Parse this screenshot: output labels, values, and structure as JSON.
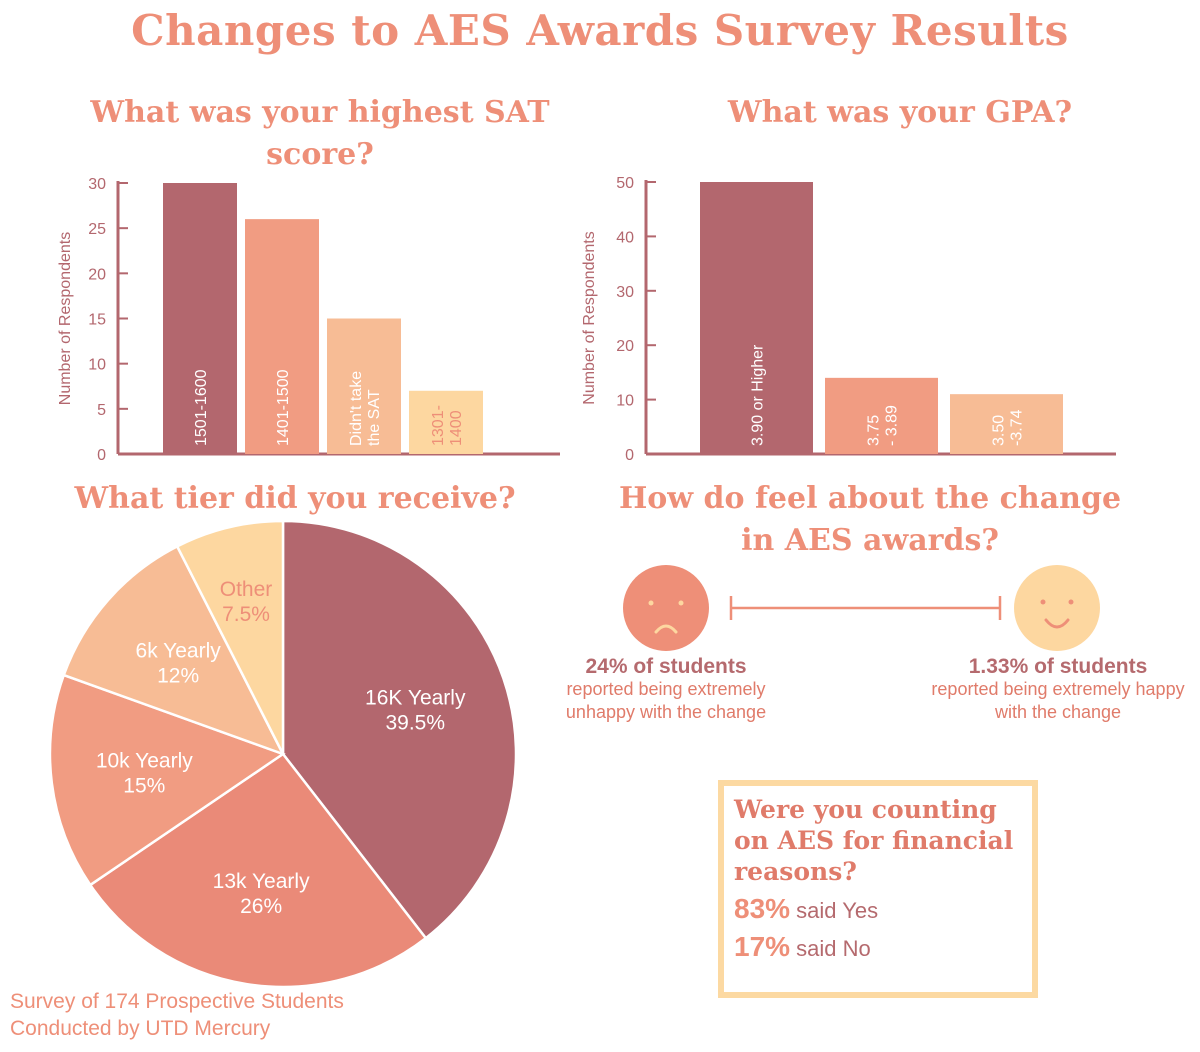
{
  "title": "Changes to AES Awards Survey Results",
  "chart_data": [
    {
      "type": "bar",
      "title": "What was your highest SAT score?",
      "ylabel": "Number of Respondents",
      "ylim": [
        0,
        30
      ],
      "yticks": [
        0,
        5,
        10,
        15,
        20,
        25,
        30
      ],
      "categories": [
        "1501-1600",
        "1401-1500",
        "Didn't take the SAT",
        "1301-1400"
      ],
      "bar_label_lines": [
        [
          "1501-1600"
        ],
        [
          "1401-1500"
        ],
        [
          "Didn't take",
          "the SAT"
        ],
        [
          "1301-",
          "1400"
        ]
      ],
      "values": [
        30,
        26,
        15,
        7
      ],
      "colors": [
        "#b3676e",
        "#f19c82",
        "#f7bc95",
        "#fdd7a0"
      ]
    },
    {
      "type": "bar",
      "title": "What was your GPA?",
      "ylabel": "Number of Respondents",
      "ylim": [
        0,
        50
      ],
      "yticks": [
        0,
        10,
        20,
        30,
        40,
        50
      ],
      "categories": [
        "3.90 or Higher",
        "3.75 - 3.89",
        "3.50 -3.74"
      ],
      "bar_label_lines": [
        [
          "3.90 or Higher"
        ],
        [
          "3.75",
          "- 3.89"
        ],
        [
          "3.50",
          "-3.74"
        ]
      ],
      "values": [
        50,
        14,
        11
      ],
      "colors": [
        "#b3676e",
        "#f19c82",
        "#f7bc95"
      ]
    },
    {
      "type": "pie",
      "title": "What tier did you receive?",
      "slices": [
        {
          "label": "16K Yearly",
          "pct_text": "39.5%",
          "value": 39.5,
          "color": "#b3676e",
          "text_color": "#ffffff"
        },
        {
          "label": "13k Yearly",
          "pct_text": "26%",
          "value": 26,
          "color": "#ea8a78",
          "text_color": "#ffffff"
        },
        {
          "label": "10k Yearly",
          "pct_text": "15%",
          "value": 15,
          "color": "#f19c82",
          "text_color": "#ffffff"
        },
        {
          "label": "6k Yearly",
          "pct_text": "12%",
          "value": 12,
          "color": "#f7bc95",
          "text_color": "#ffffff"
        },
        {
          "label": "Other",
          "pct_text": "7.5%",
          "value": 7.5,
          "color": "#fdd7a0",
          "text_color": "#ee8f78"
        }
      ]
    }
  ],
  "feelings": {
    "title": "How do feel about the change in AES awards?",
    "unhappy": {
      "pct": "24% of students",
      "text": "reported being extremely unhappy with the change",
      "color": "#ee8f78"
    },
    "happy": {
      "pct": "1.33% of students",
      "text": "reported being extremely happy with the change",
      "color": "#fdd7a0"
    }
  },
  "finance": {
    "question": "Were you counting on AES for financial reasons?",
    "yes_pct": "83%",
    "yes_text": "said Yes",
    "no_pct": "17%",
    "no_text": "said No"
  },
  "footer": [
    "Survey of 174 Prospective Students",
    "Conducted by UTD Mercury"
  ],
  "colors": {
    "title": "#ee8f78",
    "axis": "#b3676e",
    "box_border": "#fcd9a2"
  }
}
